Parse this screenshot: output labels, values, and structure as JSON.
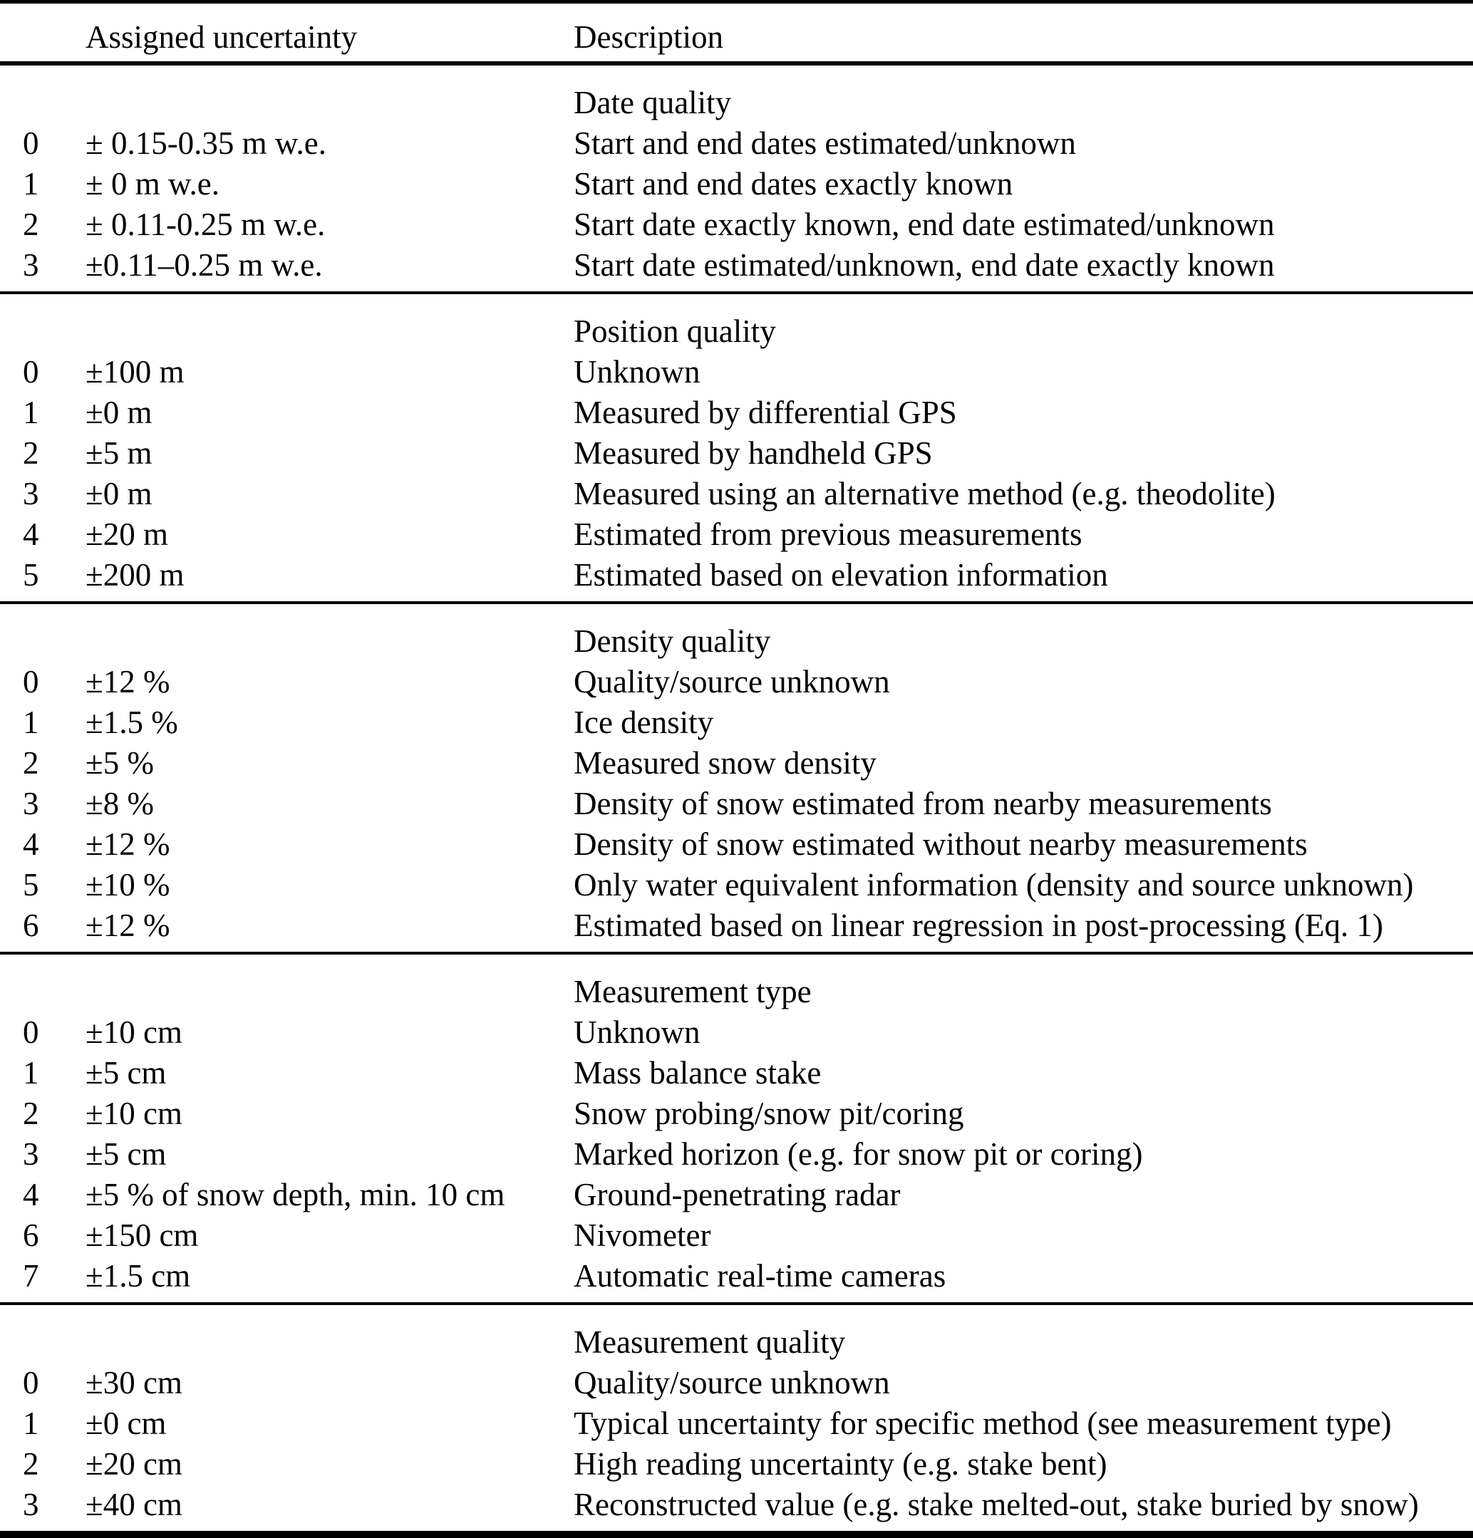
{
  "colors": {
    "background": "#ffffff",
    "text": "#000000",
    "rule": "#000000"
  },
  "table": {
    "headers": {
      "code": "",
      "uncertainty": "Assigned uncertainty",
      "description": "Description"
    },
    "sections": [
      {
        "title": "Date quality",
        "rows": [
          {
            "code": "0",
            "uncertainty": "± 0.15-0.35 m w.e.",
            "description": "Start and end dates estimated/unknown"
          },
          {
            "code": "1",
            "uncertainty": "± 0 m w.e.",
            "description": "Start and end dates exactly known"
          },
          {
            "code": "2",
            "uncertainty": "± 0.11-0.25 m w.e.",
            "description": "Start date exactly known, end date estimated/unknown"
          },
          {
            "code": "3",
            "uncertainty": "±0.11–0.25 m w.e.",
            "description": "Start date estimated/unknown, end date exactly known"
          }
        ]
      },
      {
        "title": "Position quality",
        "rows": [
          {
            "code": "0",
            "uncertainty": "±100 m",
            "description": "Unknown"
          },
          {
            "code": "1",
            "uncertainty": "±0 m",
            "description": "Measured by differential GPS"
          },
          {
            "code": "2",
            "uncertainty": "±5 m",
            "description": "Measured by handheld GPS"
          },
          {
            "code": "3",
            "uncertainty": "±0 m",
            "description": "Measured using an alternative method (e.g. theodolite)"
          },
          {
            "code": "4",
            "uncertainty": "±20 m",
            "description": "Estimated from previous measurements"
          },
          {
            "code": "5",
            "uncertainty": "±200 m",
            "description": "Estimated based on elevation information"
          }
        ]
      },
      {
        "title": "Density quality",
        "rows": [
          {
            "code": "0",
            "uncertainty": "±12 %",
            "description": "Quality/source unknown"
          },
          {
            "code": "1",
            "uncertainty": "±1.5 %",
            "description": "Ice density"
          },
          {
            "code": "2",
            "uncertainty": "±5 %",
            "description": "Measured snow density"
          },
          {
            "code": "3",
            "uncertainty": "±8 %",
            "description": "Density of snow estimated from nearby measurements"
          },
          {
            "code": "4",
            "uncertainty": "±12 %",
            "description": "Density of snow estimated without nearby measurements"
          },
          {
            "code": "5",
            "uncertainty": "±10 %",
            "description": "Only water equivalent information (density and source unknown)"
          },
          {
            "code": "6",
            "uncertainty": "±12 %",
            "description": "Estimated based on linear regression in post-processing (Eq. 1)"
          }
        ]
      },
      {
        "title": "Measurement type",
        "rows": [
          {
            "code": "0",
            "uncertainty": "±10 cm",
            "description": "Unknown"
          },
          {
            "code": "1",
            "uncertainty": "±5 cm",
            "description": "Mass balance stake"
          },
          {
            "code": "2",
            "uncertainty": "±10 cm",
            "description": "Snow probing/snow pit/coring"
          },
          {
            "code": "3",
            "uncertainty": "±5 cm",
            "description": "Marked horizon (e.g. for snow pit or coring)"
          },
          {
            "code": "4",
            "uncertainty": "±5 % of snow depth, min. 10 cm",
            "description": "Ground-penetrating radar"
          },
          {
            "code": "6",
            "uncertainty": "±150 cm",
            "description": "Nivometer"
          },
          {
            "code": "7",
            "uncertainty": "±1.5 cm",
            "description": "Automatic real-time cameras"
          }
        ]
      },
      {
        "title": "Measurement quality",
        "rows": [
          {
            "code": "0",
            "uncertainty": "±30 cm",
            "description": "Quality/source unknown"
          },
          {
            "code": "1",
            "uncertainty": "±0 cm",
            "description": "Typical uncertainty for specific method (see measurement type)"
          },
          {
            "code": "2",
            "uncertainty": "±20 cm",
            "description": "High reading uncertainty (e.g. stake bent)"
          },
          {
            "code": "3",
            "uncertainty": "±40 cm",
            "description": "Reconstructed value (e.g. stake melted-out, stake buried by snow)"
          }
        ]
      }
    ]
  }
}
